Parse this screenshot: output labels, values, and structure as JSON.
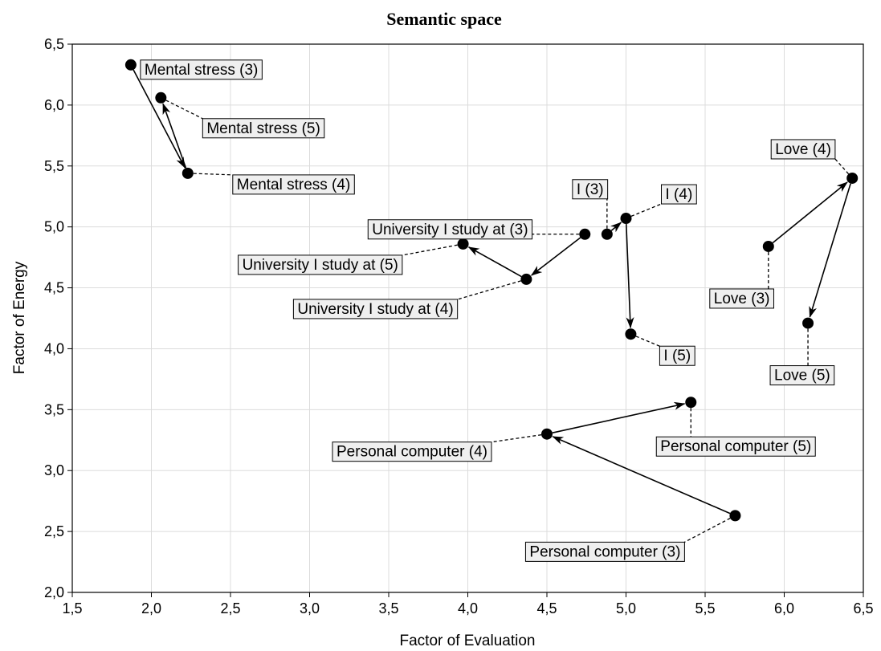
{
  "chart_data": {
    "type": "scatter",
    "title": "Semantic space",
    "xlabel": "Factor of Evaluation",
    "ylabel": "Factor of Energy",
    "xlim": [
      1.5,
      6.5
    ],
    "ylim": [
      2.0,
      6.5
    ],
    "x_ticks": [
      "1,5",
      "2,0",
      "2,5",
      "3,0",
      "3,5",
      "4,0",
      "4,5",
      "5,0",
      "5,5",
      "6,0",
      "6,5"
    ],
    "y_ticks": [
      "2,0",
      "2,5",
      "3,0",
      "3,5",
      "4,0",
      "4,5",
      "5,0",
      "5,5",
      "6,0",
      "6,5"
    ],
    "grid": true,
    "points": [
      {
        "label": "Mental stress (3)",
        "x": 1.87,
        "y": 6.33
      },
      {
        "label": "Mental stress (4)",
        "x": 2.23,
        "y": 5.44
      },
      {
        "label": "Mental stress (5)",
        "x": 2.06,
        "y": 6.06
      },
      {
        "label": "University I study at (3)",
        "x": 4.74,
        "y": 4.94
      },
      {
        "label": "University I study at (4)",
        "x": 4.37,
        "y": 4.57
      },
      {
        "label": "University I study at (5)",
        "x": 3.97,
        "y": 4.86
      },
      {
        "label": "I (3)",
        "x": 4.88,
        "y": 4.94
      },
      {
        "label": "I (4)",
        "x": 5.0,
        "y": 5.07
      },
      {
        "label": "I (5)",
        "x": 5.03,
        "y": 4.12
      },
      {
        "label": "Love (3)",
        "x": 5.9,
        "y": 4.84
      },
      {
        "label": "Love (4)",
        "x": 6.43,
        "y": 5.4
      },
      {
        "label": "Love (5)",
        "x": 6.15,
        "y": 4.21
      },
      {
        "label": "Personal computer (3)",
        "x": 5.69,
        "y": 2.63
      },
      {
        "label": "Personal computer (4)",
        "x": 4.5,
        "y": 3.3
      },
      {
        "label": "Personal computer (5)",
        "x": 5.41,
        "y": 3.56
      }
    ],
    "trajectories": [
      [
        "Mental stress (3)",
        "Mental stress (4)",
        "Mental stress (5)"
      ],
      [
        "University I study at (3)",
        "University I study at (4)",
        "University I study at (5)"
      ],
      [
        "I (3)",
        "I (4)",
        "I (5)"
      ],
      [
        "Love (3)",
        "Love (4)",
        "Love (5)"
      ],
      [
        "Personal computer (3)",
        "Personal computer (4)",
        "Personal computer (5)"
      ]
    ]
  }
}
